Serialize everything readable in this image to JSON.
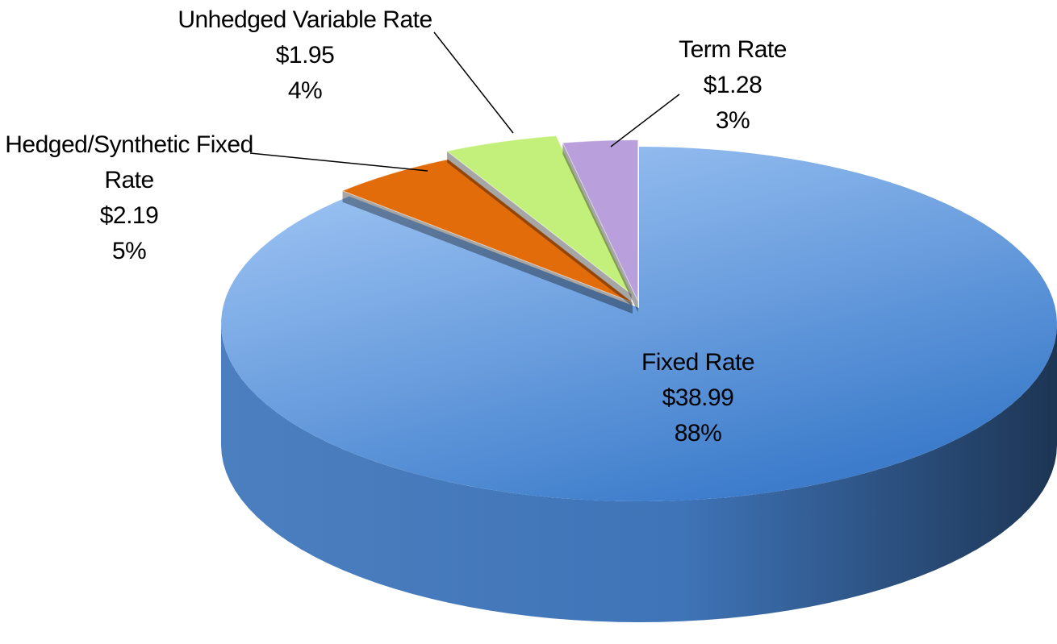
{
  "chart_data": {
    "type": "pie",
    "categories": [
      "Fixed Rate",
      "Hedged/Synthetic Fixed Rate",
      "Unhedged Variable Rate",
      "Term Rate"
    ],
    "values": [
      38.99,
      2.19,
      1.95,
      1.28
    ],
    "value_labels": [
      "$38.99",
      "$2.19",
      "$1.95",
      "$1.28"
    ],
    "percentages": [
      88,
      5,
      4,
      3
    ],
    "percentage_labels": [
      "88%",
      "5%",
      "4%",
      "3%"
    ],
    "colors": [
      "#5b8fd8",
      "#e26b0a",
      "#c3f07a",
      "#b9a0dc"
    ]
  }
}
